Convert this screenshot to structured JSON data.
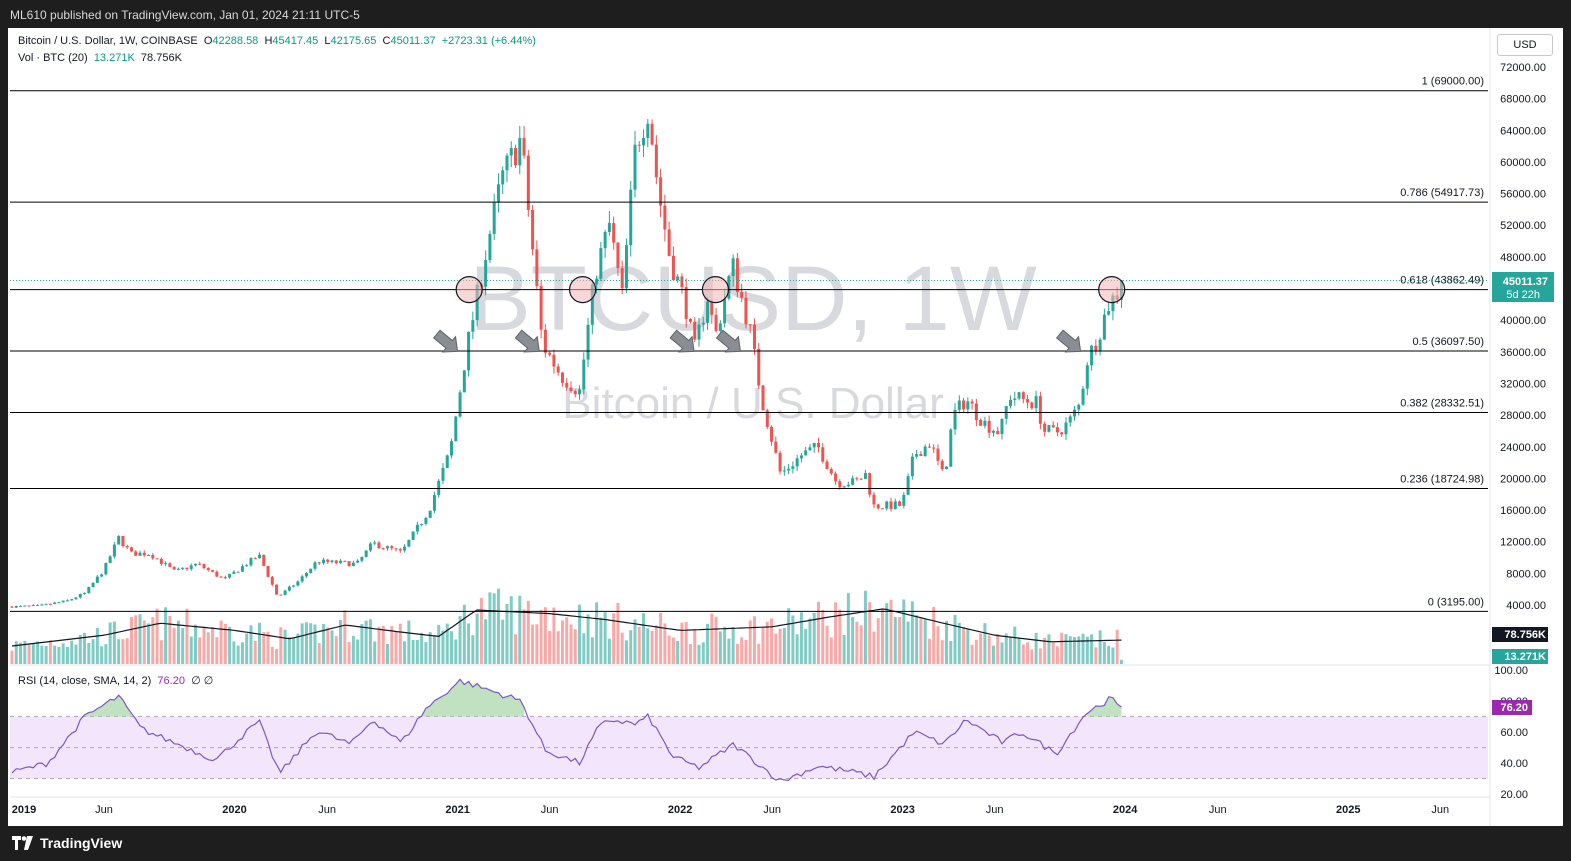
{
  "header": {
    "publisher": "ML610 published on TradingView.com, Jan 01, 2024 21:11 UTC-5"
  },
  "legend": {
    "symbol": "Bitcoin / U.S. Dollar, 1W, COINBASE",
    "o_label": "O",
    "o_value": "42288.58",
    "h_label": "H",
    "h_value": "45417.45",
    "l_label": "L",
    "l_value": "42175.65",
    "c_label": "C",
    "c_value": "45011.37",
    "change": "+2723.31 (+6.44%)",
    "vol_label": "Vol · BTC (20)",
    "vol_value": "13.271K",
    "vol_ma_value": "78.756K"
  },
  "watermark": {
    "ticker": "BTCUSD, 1W",
    "name": "Bitcoin / U.S. Dollar"
  },
  "currency_button": "USD",
  "price_badge": {
    "value": "45011.37",
    "countdown": "5d 22h"
  },
  "volume_badges": {
    "ma": "78.756K",
    "vol": "13.271K"
  },
  "rsi": {
    "label": "RSI (14, close, SMA, 14, 2)",
    "value": "76.20",
    "extra": "∅ ∅",
    "badge": "76.20",
    "ticks": [
      "100.00",
      "80.00",
      "60.00",
      "40.00",
      "20.00"
    ]
  },
  "footer": {
    "brand": "TradingView"
  },
  "colors": {
    "up": "#26a69a",
    "down": "#ef5350",
    "up_vol": "#80cbc4",
    "down_vol": "#f7a9a7",
    "rsi_line": "#7e57c2",
    "rsi_band": "#f3e5fb",
    "fib_line": "#000000",
    "last_price": "#26a69a"
  },
  "chart_data": {
    "type": "candlestick",
    "title": "Bitcoin / U.S. Dollar, 1W, COINBASE",
    "y_axis": {
      "scale": "linear",
      "ylim": [
        0,
        74000
      ],
      "ticks": [
        "72000.00",
        "68000.00",
        "64000.00",
        "60000.00",
        "56000.00",
        "52000.00",
        "48000.00",
        "44000.00",
        "40000.00",
        "36000.00",
        "32000.00",
        "28000.00",
        "24000.00",
        "20000.00",
        "16000.00",
        "12000.00",
        "8000.00",
        "4000.00"
      ]
    },
    "x_axis": {
      "ticks": [
        "2019",
        "Jun",
        "2020",
        "Jun",
        "2021",
        "Jun",
        "2022",
        "Jun",
        "2023",
        "Jun",
        "2024",
        "Jun",
        "2025",
        "Jun"
      ]
    },
    "fib_levels": [
      {
        "ratio": "1",
        "price": 69000.0,
        "label": "1 (69000.00)"
      },
      {
        "ratio": "0.786",
        "price": 54917.73,
        "label": "0.786 (54917.73)"
      },
      {
        "ratio": "0.618",
        "price": 43862.49,
        "label": "0.618 (43862.49)"
      },
      {
        "ratio": "0.5",
        "price": 36097.5,
        "label": "0.5 (36097.50)"
      },
      {
        "ratio": "0.382",
        "price": 28332.51,
        "label": "0.382 (28332.51)"
      },
      {
        "ratio": "0.236",
        "price": 18724.98,
        "label": "0.236 (18724.98)"
      },
      {
        "ratio": "0",
        "price": 3195.0,
        "label": "0 (3195.00)"
      }
    ],
    "last_price": 45011.37,
    "price_path": [
      [
        "2019-01-01",
        3800
      ],
      [
        "2019-02-15",
        3900
      ],
      [
        "2019-04-01",
        4500
      ],
      [
        "2019-05-01",
        5500
      ],
      [
        "2019-06-01",
        8500
      ],
      [
        "2019-06-25",
        12500
      ],
      [
        "2019-07-15",
        10500
      ],
      [
        "2019-08-15",
        10500
      ],
      [
        "2019-09-25",
        8200
      ],
      [
        "2019-11-01",
        9200
      ],
      [
        "2019-12-15",
        7200
      ],
      [
        "2020-02-10",
        10300
      ],
      [
        "2020-03-12",
        5000
      ],
      [
        "2020-04-15",
        7000
      ],
      [
        "2020-05-15",
        9500
      ],
      [
        "2020-07-20",
        9200
      ],
      [
        "2020-08-15",
        11800
      ],
      [
        "2020-10-01",
        10600
      ],
      [
        "2020-11-15",
        16000
      ],
      [
        "2020-12-20",
        23500
      ],
      [
        "2021-01-15",
        36000
      ],
      [
        "2021-02-20",
        50000
      ],
      [
        "2021-03-15",
        58000
      ],
      [
        "2021-04-15",
        63000
      ],
      [
        "2021-05-20",
        37000
      ],
      [
        "2021-06-20",
        33000
      ],
      [
        "2021-07-20",
        31000
      ],
      [
        "2021-08-15",
        46000
      ],
      [
        "2021-09-07",
        52000
      ],
      [
        "2021-09-28",
        43000
      ],
      [
        "2021-10-20",
        62000
      ],
      [
        "2021-11-10",
        67000
      ],
      [
        "2021-11-25",
        57000
      ],
      [
        "2021-12-15",
        48000
      ],
      [
        "2022-01-10",
        42000
      ],
      [
        "2022-01-24",
        36000
      ],
      [
        "2022-02-15",
        43000
      ],
      [
        "2022-02-28",
        38000
      ],
      [
        "2022-03-28",
        47000
      ],
      [
        "2022-04-25",
        39000
      ],
      [
        "2022-05-15",
        30000
      ],
      [
        "2022-06-15",
        20500
      ],
      [
        "2022-07-20",
        23000
      ],
      [
        "2022-08-15",
        24000
      ],
      [
        "2022-09-15",
        19500
      ],
      [
        "2022-10-15",
        19500
      ],
      [
        "2022-11-01",
        20500
      ],
      [
        "2022-11-15",
        16500
      ],
      [
        "2022-12-31",
        16600
      ],
      [
        "2023-01-20",
        23000
      ],
      [
        "2023-02-15",
        24500
      ],
      [
        "2023-03-10",
        20000
      ],
      [
        "2023-03-25",
        28000
      ],
      [
        "2023-04-15",
        30000
      ],
      [
        "2023-05-15",
        27000
      ],
      [
        "2023-06-10",
        25800
      ],
      [
        "2023-06-25",
        30500
      ],
      [
        "2023-07-15",
        30000
      ],
      [
        "2023-08-10",
        29500
      ],
      [
        "2023-08-20",
        26000
      ],
      [
        "2023-09-10",
        25800
      ],
      [
        "2023-09-30",
        27000
      ],
      [
        "2023-10-20",
        29500
      ],
      [
        "2023-10-28",
        34500
      ],
      [
        "2023-11-15",
        37500
      ],
      [
        "2023-12-05",
        42000
      ],
      [
        "2023-12-20",
        43500
      ],
      [
        "2024-01-01",
        45011
      ]
    ],
    "volume_ma": [
      [
        "2019-01-01",
        3000
      ],
      [
        "2019-06-01",
        4800
      ],
      [
        "2019-09-01",
        6800
      ],
      [
        "2020-01-01",
        5600
      ],
      [
        "2020-04-01",
        4200
      ],
      [
        "2020-07-01",
        6500
      ],
      [
        "2020-10-01",
        5300
      ],
      [
        "2020-12-01",
        4600
      ],
      [
        "2021-02-01",
        9000
      ],
      [
        "2021-06-01",
        8400
      ],
      [
        "2021-09-01",
        7400
      ],
      [
        "2022-01-01",
        5600
      ],
      [
        "2022-06-01",
        6200
      ],
      [
        "2022-09-01",
        7800
      ],
      [
        "2022-12-01",
        9200
      ],
      [
        "2023-03-01",
        7000
      ],
      [
        "2023-06-01",
        4800
      ],
      [
        "2023-09-01",
        3700
      ],
      [
        "2024-01-01",
        4000
      ]
    ],
    "rsi_path": [
      [
        "2019-01-01",
        34
      ],
      [
        "2019-03-01",
        40
      ],
      [
        "2019-05-01",
        70
      ],
      [
        "2019-06-25",
        83
      ],
      [
        "2019-08-01",
        62
      ],
      [
        "2019-10-01",
        52
      ],
      [
        "2019-12-01",
        42
      ],
      [
        "2020-02-10",
        67
      ],
      [
        "2020-03-15",
        33
      ],
      [
        "2020-05-15",
        61
      ],
      [
        "2020-07-10",
        52
      ],
      [
        "2020-08-15",
        68
      ],
      [
        "2020-10-01",
        53
      ],
      [
        "2020-11-10",
        75
      ],
      [
        "2021-01-05",
        93
      ],
      [
        "2021-02-15",
        88
      ],
      [
        "2021-04-15",
        80
      ],
      [
        "2021-05-25",
        48
      ],
      [
        "2021-07-20",
        40
      ],
      [
        "2021-08-20",
        63
      ],
      [
        "2021-09-10",
        68
      ],
      [
        "2021-10-20",
        65
      ],
      [
        "2021-11-10",
        70
      ],
      [
        "2021-12-20",
        44
      ],
      [
        "2022-02-01",
        37
      ],
      [
        "2022-03-30",
        52
      ],
      [
        "2022-06-15",
        28
      ],
      [
        "2022-08-15",
        38
      ],
      [
        "2022-10-15",
        34
      ],
      [
        "2022-11-15",
        31
      ],
      [
        "2023-01-20",
        60
      ],
      [
        "2023-03-10",
        52
      ],
      [
        "2023-04-15",
        68
      ],
      [
        "2023-06-15",
        53
      ],
      [
        "2023-07-15",
        60
      ],
      [
        "2023-09-10",
        46
      ],
      [
        "2023-10-28",
        72
      ],
      [
        "2023-12-10",
        82
      ],
      [
        "2023-12-25",
        74
      ],
      [
        "2024-01-01",
        76
      ]
    ],
    "annotations": {
      "circles": [
        "2021-01-20",
        "2021-07-25",
        "2022-02-28",
        "2023-12-10"
      ],
      "arrows": [
        "2021-01-01",
        "2021-05-15",
        "2022-01-24",
        "2022-04-10",
        "2023-10-20"
      ]
    }
  }
}
